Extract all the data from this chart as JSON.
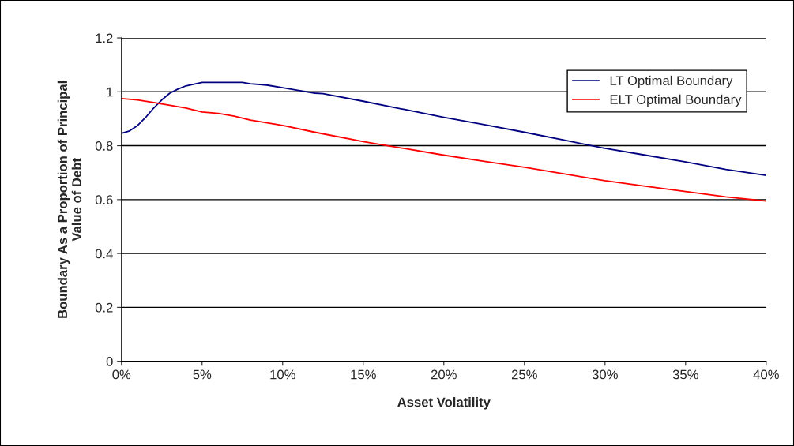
{
  "chart_data": {
    "type": "line",
    "xlabel": "Asset Volatility",
    "ylabel": "Boundary As a Proportion of Principal\nValue of Debt",
    "xlim": [
      0,
      40
    ],
    "xticks": [
      {
        "value": 0,
        "label": "0%"
      },
      {
        "value": 5,
        "label": "5%"
      },
      {
        "value": 10,
        "label": "10%"
      },
      {
        "value": 15,
        "label": "15%"
      },
      {
        "value": 20,
        "label": "20%"
      },
      {
        "value": 25,
        "label": "25%"
      },
      {
        "value": 30,
        "label": "30%"
      },
      {
        "value": 35,
        "label": "35%"
      },
      {
        "value": 40,
        "label": "40%"
      }
    ],
    "ylim": [
      0,
      1.2
    ],
    "yticks": [
      0,
      0.2,
      0.4,
      0.6,
      0.8,
      1,
      1.2
    ],
    "grid": "y",
    "legend": "top right",
    "series": [
      {
        "name": "LT Optimal Boundary",
        "color": "#000080",
        "x": [
          0,
          0.5,
          1,
          1.5,
          2,
          2.5,
          3,
          3.5,
          4,
          4.5,
          5,
          6,
          7.5,
          8,
          9,
          10,
          11,
          12,
          12.5,
          15,
          17.5,
          20,
          22.5,
          25,
          27.5,
          30,
          32.5,
          35,
          37.5,
          40
        ],
        "values": [
          0.846,
          0.855,
          0.875,
          0.905,
          0.94,
          0.97,
          0.995,
          1.01,
          1.022,
          1.028,
          1.035,
          1.035,
          1.035,
          1.03,
          1.025,
          1.015,
          1.005,
          0.995,
          0.993,
          0.965,
          0.935,
          0.905,
          0.878,
          0.85,
          0.82,
          0.79,
          0.765,
          0.74,
          0.712,
          0.69
        ]
      },
      {
        "name": "ELT Optimal Boundary",
        "color": "#ff0000",
        "x": [
          0,
          1,
          2,
          3,
          4,
          5,
          6,
          7,
          8,
          10,
          12,
          15,
          17.5,
          20,
          22.5,
          25,
          27.5,
          30,
          32.5,
          35,
          37.5,
          40
        ],
        "values": [
          0.975,
          0.97,
          0.96,
          0.95,
          0.94,
          0.925,
          0.92,
          0.91,
          0.895,
          0.875,
          0.85,
          0.815,
          0.79,
          0.765,
          0.742,
          0.72,
          0.695,
          0.67,
          0.65,
          0.63,
          0.61,
          0.595
        ]
      }
    ]
  }
}
